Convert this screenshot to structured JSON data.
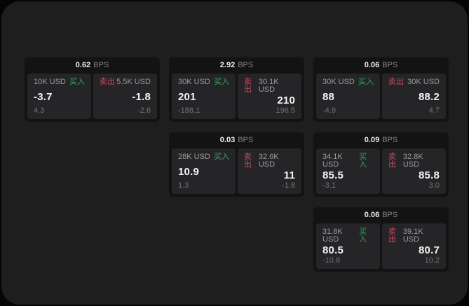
{
  "labels": {
    "bps_unit": "BPS",
    "buy": "买入",
    "sell": "卖出"
  },
  "colors": {
    "page_bg": "#1e1e1f",
    "card_bg": "#131314",
    "panel_bg": "#252527",
    "buy_green": "#36a35c",
    "sell_red": "#c64a62",
    "value_white": "#f3f3f4",
    "label_gray": "#9a9a9e",
    "sub_gray": "#737377"
  },
  "cards": [
    {
      "row": 1,
      "col": 1,
      "bps": "0.62",
      "buy": {
        "amount": "10K USD",
        "value": "-3.7",
        "sub": "4.3"
      },
      "sell": {
        "amount": "5.5K USD",
        "value": "-1.8",
        "sub": "-2.6"
      }
    },
    {
      "row": 1,
      "col": 2,
      "bps": "2.92",
      "buy": {
        "amount": "30K USD",
        "value": "201",
        "sub": "-188.1"
      },
      "sell": {
        "amount": "30.1K USD",
        "value": "210",
        "sub": "196.5"
      }
    },
    {
      "row": 1,
      "col": 3,
      "bps": "0.06",
      "buy": {
        "amount": "30K USD",
        "value": "88",
        "sub": "-4.9"
      },
      "sell": {
        "amount": "30K USD",
        "value": "88.2",
        "sub": "4.7"
      }
    },
    {
      "row": 2,
      "col": 2,
      "bps": "0.03",
      "buy": {
        "amount": "28K USD",
        "value": "10.9",
        "sub": "1.3"
      },
      "sell": {
        "amount": "32.6K USD",
        "value": "11",
        "sub": "-1.8"
      }
    },
    {
      "row": 2,
      "col": 3,
      "bps": "0.09",
      "buy": {
        "amount": "34.1K USD",
        "value": "85.5",
        "sub": "-3.1"
      },
      "sell": {
        "amount": "32.8K USD",
        "value": "85.8",
        "sub": "3.0"
      }
    },
    {
      "row": 3,
      "col": 3,
      "bps": "0.06",
      "buy": {
        "amount": "31.8K USD",
        "value": "80.5",
        "sub": "-10.8"
      },
      "sell": {
        "amount": "39.1K USD",
        "value": "80.7",
        "sub": "10.2"
      }
    }
  ]
}
